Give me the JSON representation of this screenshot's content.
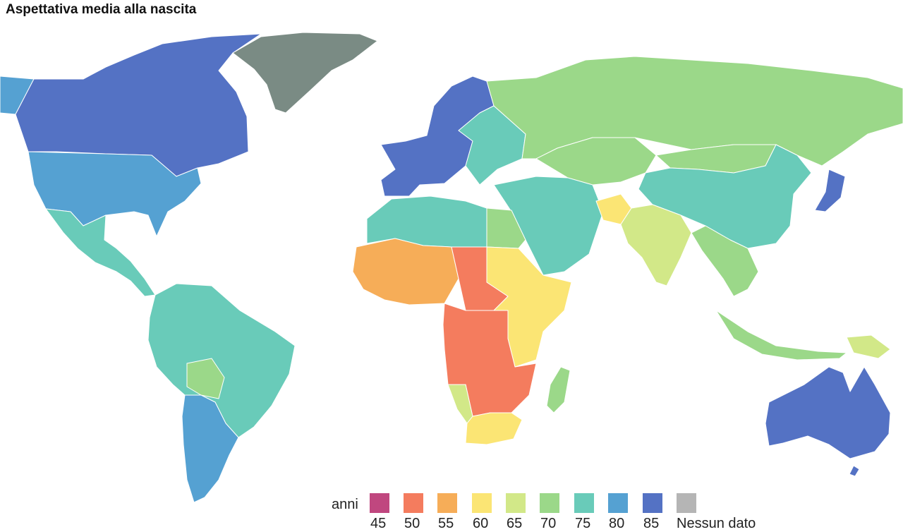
{
  "title": "Aspettativa media alla nascita",
  "legend": {
    "unit": "anni",
    "items": [
      {
        "label": "45",
        "color": "#c0477f"
      },
      {
        "label": "50",
        "color": "#f47c5e"
      },
      {
        "label": "55",
        "color": "#f6ad58"
      },
      {
        "label": "60",
        "color": "#fbe574"
      },
      {
        "label": "65",
        "color": "#d2e888"
      },
      {
        "label": "70",
        "color": "#9bd889"
      },
      {
        "label": "75",
        "color": "#69cbb9"
      },
      {
        "label": "80",
        "color": "#55a1d2"
      },
      {
        "label": "85",
        "color": "#5472c4"
      },
      {
        "label": "Nessun dato",
        "color": "#b5b5b5"
      }
    ]
  },
  "regions": {
    "canada": "#5472c4",
    "alaska": "#55a1d2",
    "greenland": "#7a8b84",
    "usa": "#55a1d2",
    "mexico_central_america": "#69cbb9",
    "south_america": "#69cbb9",
    "argentina_chile": "#55a1d2",
    "bolivia": "#9bd889",
    "europe_west": "#5472c4",
    "europe_east": "#69cbb9",
    "russia": "#9bd889",
    "kazakhstan": "#9bd889",
    "china": "#69cbb9",
    "mongolia": "#9bd889",
    "japan": "#5472c4",
    "middle_east": "#69cbb9",
    "afghanistan": "#fbe574",
    "india": "#d2e888",
    "southeast_asia": "#9bd889",
    "indonesia": "#9bd889",
    "north_africa": "#69cbb9",
    "egypt": "#9bd889",
    "sahel_west": "#f6ad58",
    "chad_car": "#f47c5e",
    "east_africa": "#fbe574",
    "central_africa": "#f47c5e",
    "southern_africa": "#fbe574",
    "namibia": "#d2e888",
    "madagascar": "#9bd889",
    "australia": "#5472c4",
    "new_zealand": "#5472c4",
    "png": "#d2e888"
  }
}
